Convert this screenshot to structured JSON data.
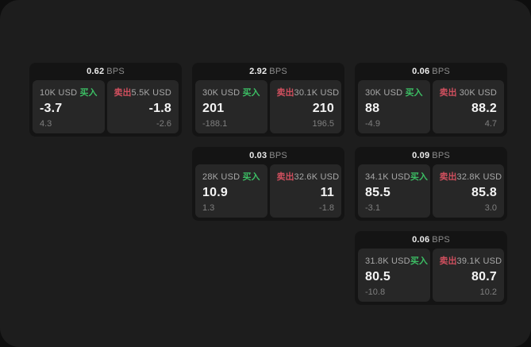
{
  "labels": {
    "bps_unit": "BPS",
    "buy": "买入",
    "sell": "卖出"
  },
  "colors": {
    "buy_green": "#3cbe64",
    "sell_red": "#cf4f5e",
    "window_bg": "#1d1d1d",
    "card_bg": "#141414",
    "panel_bg": "#272727"
  },
  "cards": [
    {
      "col": 1,
      "row": 1,
      "bps": "0.62",
      "buy": {
        "amount": "10K USD",
        "value": "-3.7",
        "delta": "4.3"
      },
      "sell": {
        "amount": "5.5K USD",
        "value": "-1.8",
        "delta": "-2.6"
      }
    },
    {
      "col": 2,
      "row": 1,
      "bps": "2.92",
      "buy": {
        "amount": "30K USD",
        "value": "201",
        "delta": "-188.1"
      },
      "sell": {
        "amount": "30.1K USD",
        "value": "210",
        "delta": "196.5"
      }
    },
    {
      "col": 3,
      "row": 1,
      "bps": "0.06",
      "buy": {
        "amount": "30K USD",
        "value": "88",
        "delta": "-4.9"
      },
      "sell": {
        "amount": "30K USD",
        "value": "88.2",
        "delta": "4.7"
      }
    },
    {
      "col": 2,
      "row": 2,
      "bps": "0.03",
      "buy": {
        "amount": "28K USD",
        "value": "10.9",
        "delta": "1.3"
      },
      "sell": {
        "amount": "32.6K USD",
        "value": "11",
        "delta": "-1.8"
      }
    },
    {
      "col": 3,
      "row": 2,
      "bps": "0.09",
      "buy": {
        "amount": "34.1K USD",
        "value": "85.5",
        "delta": "-3.1"
      },
      "sell": {
        "amount": "32.8K USD",
        "value": "85.8",
        "delta": "3.0"
      }
    },
    {
      "col": 3,
      "row": 3,
      "bps": "0.06",
      "buy": {
        "amount": "31.8K USD",
        "value": "80.5",
        "delta": "-10.8"
      },
      "sell": {
        "amount": "39.1K USD",
        "value": "80.7",
        "delta": "10.2"
      }
    }
  ]
}
